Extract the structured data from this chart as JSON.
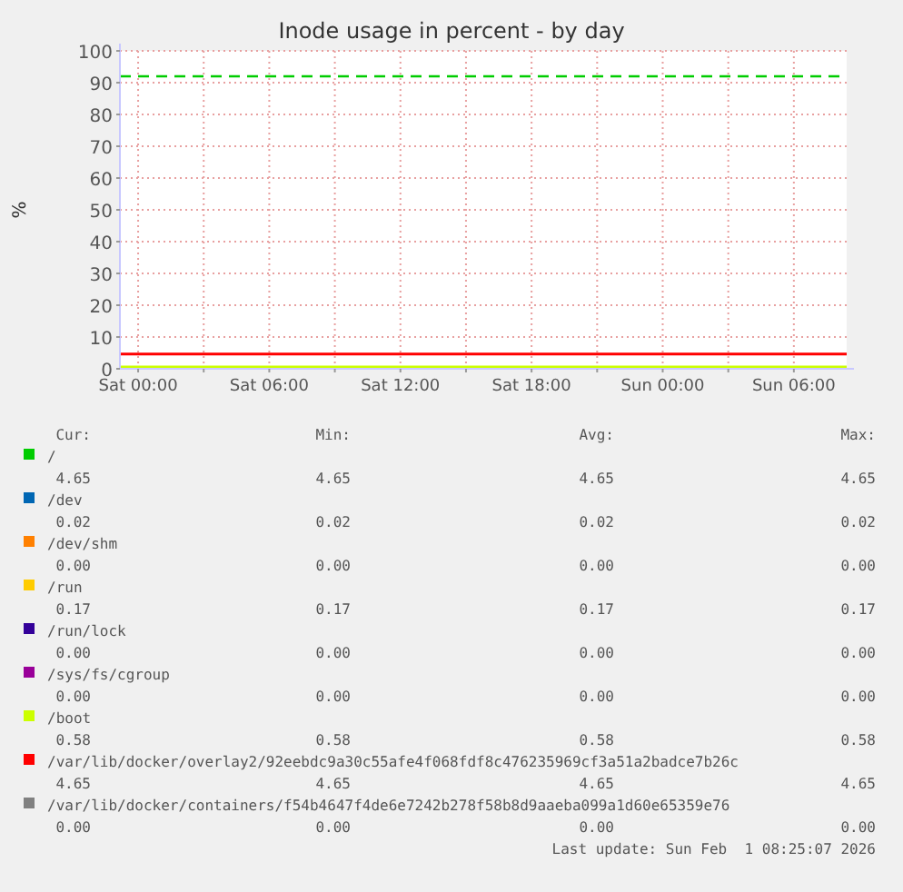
{
  "chart_data": {
    "type": "line",
    "title": "Inode usage in percent - by day",
    "ylabel": "%",
    "x": [
      "2026-01-30T23:10",
      "2026-02-01T08:25"
    ],
    "xlim": [
      "2026-01-30T23:10",
      "2026-02-01T08:25"
    ],
    "xticks": [
      {
        "value": "2026-01-31T00:00",
        "label": "Sat 00:00"
      },
      {
        "value": "2026-01-31T03:00",
        "label": null
      },
      {
        "value": "2026-01-31T06:00",
        "label": "Sat 06:00"
      },
      {
        "value": "2026-01-31T09:00",
        "label": null
      },
      {
        "value": "2026-01-31T12:00",
        "label": "Sat 12:00"
      },
      {
        "value": "2026-01-31T15:00",
        "label": null
      },
      {
        "value": "2026-01-31T18:00",
        "label": "Sat 18:00"
      },
      {
        "value": "2026-01-31T21:00",
        "label": null
      },
      {
        "value": "2026-02-01T00:00",
        "label": "Sun 00:00"
      },
      {
        "value": "2026-02-01T03:00",
        "label": null
      },
      {
        "value": "2026-02-01T06:00",
        "label": "Sun 06:00"
      }
    ],
    "ylim": [
      0,
      100
    ],
    "yticks": [
      0,
      10,
      20,
      30,
      40,
      50,
      60,
      70,
      80,
      90,
      100
    ],
    "grid": true,
    "legend": "bottom",
    "line_style": "solid",
    "series": [
      {
        "name": "/",
        "color": "#00cc00",
        "values": [
          null,
          null
        ]
      },
      {
        "name": "/dev",
        "color": "#0066b3",
        "values": [
          null,
          null
        ]
      },
      {
        "name": "/dev/shm",
        "color": "#ff8000",
        "values": [
          null,
          null
        ]
      },
      {
        "name": "/run",
        "color": "#ffcc00",
        "values": [
          null,
          null
        ]
      },
      {
        "name": "/run/lock",
        "color": "#330099",
        "values": [
          null,
          null
        ]
      },
      {
        "name": "/sys/fs/cgroup",
        "color": "#990099",
        "values": [
          null,
          null
        ]
      },
      {
        "name": "/boot",
        "color": "#ccff00",
        "values": [
          0.58,
          0.58
        ]
      },
      {
        "name": "/var/lib/docker/overlay2/92eebdc9a30c55afe4f068fdf8c476235969cf3a51a2badce7b26c",
        "color": "#ff0000",
        "values": [
          4.65,
          4.65
        ]
      },
      {
        "name": "/var/lib/docker/containers/f54b4647f4de6e7242b278f58b8d9aaeba099a1d60e65359e76",
        "color": "#808080",
        "values": [
          null,
          null
        ]
      }
    ],
    "ref_lines": [
      {
        "axis": "y",
        "value": 92,
        "label": null,
        "color": "#00cc00",
        "line_style": "dashed"
      }
    ],
    "annotations": [
      "Cur:",
      "Min:",
      "Avg:",
      "Max:",
      "4.65",
      "4.65",
      "4.65",
      "4.65",
      "0.02",
      "0.02",
      "0.02",
      "0.02",
      "0.00",
      "0.00",
      "0.00",
      "0.00",
      "0.17",
      "0.17",
      "0.17",
      "0.17",
      "0.00",
      "0.00",
      "0.00",
      "0.00",
      "0.00",
      "0.00",
      "0.00",
      "0.00",
      "0.58",
      "0.58",
      "0.58",
      "0.58",
      "4.65",
      "4.65",
      "4.65",
      "4.65",
      "0.00",
      "0.00",
      "0.00",
      "0.00",
      "Last update: Sun Feb  1 08:25:07 2026"
    ]
  }
}
